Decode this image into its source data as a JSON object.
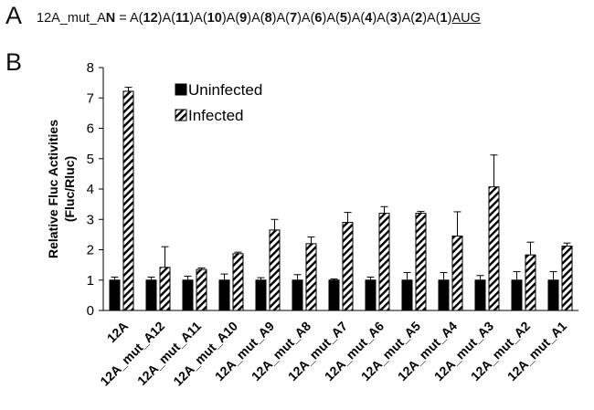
{
  "panel_a": {
    "letter": "A",
    "parts": [
      {
        "t": "12A_mut_A",
        "s": "n"
      },
      {
        "t": "N",
        "s": "b"
      },
      {
        "t": " = A(",
        "s": "n"
      },
      {
        "t": "12",
        "s": "b"
      },
      {
        "t": ")A(",
        "s": "n"
      },
      {
        "t": "11",
        "s": "b"
      },
      {
        "t": ")A(",
        "s": "n"
      },
      {
        "t": "10",
        "s": "b"
      },
      {
        "t": ")A(",
        "s": "n"
      },
      {
        "t": "9",
        "s": "b"
      },
      {
        "t": ")A(",
        "s": "n"
      },
      {
        "t": "8",
        "s": "b"
      },
      {
        "t": ")A(",
        "s": "n"
      },
      {
        "t": "7",
        "s": "b"
      },
      {
        "t": ")A(",
        "s": "n"
      },
      {
        "t": "6",
        "s": "b"
      },
      {
        "t": ")A(",
        "s": "n"
      },
      {
        "t": "5",
        "s": "b"
      },
      {
        "t": ")A(",
        "s": "n"
      },
      {
        "t": "4",
        "s": "b"
      },
      {
        "t": ")A(",
        "s": "n"
      },
      {
        "t": "3",
        "s": "b"
      },
      {
        "t": ")A(",
        "s": "n"
      },
      {
        "t": "2",
        "s": "b"
      },
      {
        "t": ")A(",
        "s": "n"
      },
      {
        "t": "1",
        "s": "b"
      },
      {
        "t": ")",
        "s": "n"
      },
      {
        "t": "AUG",
        "s": "u"
      }
    ]
  },
  "panel_b": {
    "letter": "B"
  },
  "chart_data": {
    "type": "bar",
    "ylabel_lines": [
      "Relative Fluc Activities",
      "(Fluc/Rluc)"
    ],
    "ylim": [
      0,
      8
    ],
    "yticks": [
      0,
      1,
      2,
      3,
      4,
      5,
      6,
      7,
      8
    ],
    "legend_position": "top-center",
    "categories": [
      "12A",
      "12A_mut_A12",
      "12A_mut_A11",
      "12A_mut_A10",
      "12A_mut_A9",
      "12A_mut_A8",
      "12A_mut_A7",
      "12A_mut_A6",
      "12A_mut_A5",
      "12A_mut_A4",
      "12A_mut_A3",
      "12A_mut_A2",
      "12A_mut_A1"
    ],
    "series": [
      {
        "name": "Uninfected",
        "pattern": "solid",
        "color": "#000000",
        "values": [
          1.0,
          1.0,
          1.0,
          1.0,
          1.0,
          1.0,
          1.0,
          1.0,
          1.0,
          1.0,
          1.0,
          1.0,
          1.0
        ],
        "errors": [
          0.1,
          0.1,
          0.13,
          0.2,
          0.08,
          0.18,
          0.04,
          0.1,
          0.25,
          0.25,
          0.15,
          0.28,
          0.28
        ]
      },
      {
        "name": "Infected",
        "pattern": "hatched",
        "color": "#000000",
        "values": [
          7.22,
          1.42,
          1.35,
          1.87,
          2.65,
          2.2,
          2.9,
          3.2,
          3.2,
          2.45,
          4.07,
          1.83,
          2.12
        ],
        "errors": [
          0.13,
          0.68,
          0.05,
          0.05,
          0.35,
          0.22,
          0.33,
          0.22,
          0.06,
          0.8,
          1.05,
          0.42,
          0.1
        ]
      }
    ]
  }
}
